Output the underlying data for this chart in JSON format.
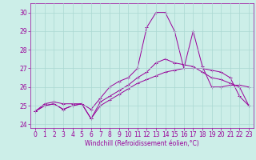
{
  "xlabel": "Windchill (Refroidissement éolien,°C)",
  "background_color": "#cceee8",
  "grid_color": "#aad8d2",
  "line_color": "#990099",
  "xlim": [
    -0.5,
    23.5
  ],
  "ylim": [
    23.8,
    30.5
  ],
  "yticks": [
    24,
    25,
    26,
    27,
    28,
    29,
    30
  ],
  "xticks": [
    0,
    1,
    2,
    3,
    4,
    5,
    6,
    7,
    8,
    9,
    10,
    11,
    12,
    13,
    14,
    15,
    16,
    17,
    18,
    19,
    20,
    21,
    22,
    23
  ],
  "series": [
    [
      24.7,
      25.1,
      25.2,
      25.1,
      25.1,
      25.1,
      24.8,
      25.4,
      26.0,
      26.3,
      26.5,
      27.0,
      29.2,
      30.0,
      30.0,
      29.0,
      27.0,
      29.0,
      27.1,
      26.0,
      26.0,
      26.1,
      26.1,
      26.0
    ],
    [
      24.7,
      25.0,
      25.1,
      24.8,
      25.0,
      25.1,
      24.3,
      25.2,
      25.5,
      25.8,
      26.1,
      26.5,
      26.8,
      27.3,
      27.5,
      27.3,
      27.2,
      27.1,
      26.8,
      26.5,
      26.4,
      26.2,
      26.0,
      25.0
    ],
    [
      24.7,
      25.0,
      25.1,
      24.8,
      25.0,
      25.1,
      24.3,
      25.0,
      25.3,
      25.6,
      25.9,
      26.2,
      26.4,
      26.6,
      26.8,
      26.9,
      27.0,
      27.0,
      27.0,
      26.9,
      26.8,
      26.5,
      25.5,
      25.0
    ]
  ],
  "font_size_ticks": 5.5,
  "font_size_xlabel": 5.5
}
